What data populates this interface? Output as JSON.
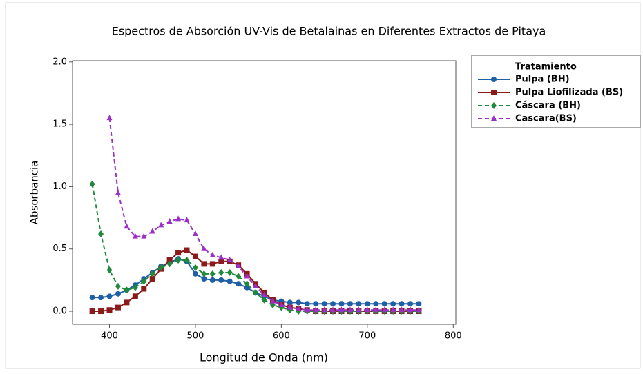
{
  "chart_data": {
    "type": "line",
    "title": "Espectros de Absorción UV-Vis de Betalainas en Diferentes Extractos de Pitaya",
    "xlabel": "Longitud de Onda (nm)",
    "ylabel": "Absorbancia",
    "legend_title": "Tratamiento",
    "legend": "outside-right",
    "x": [
      380,
      390,
      400,
      410,
      420,
      430,
      440,
      450,
      460,
      470,
      480,
      490,
      500,
      510,
      520,
      530,
      540,
      550,
      560,
      570,
      580,
      590,
      600,
      610,
      620,
      630,
      640,
      650,
      660,
      670,
      680,
      690,
      700,
      710,
      720,
      730,
      740,
      750,
      760
    ],
    "xlim": [
      357,
      803
    ],
    "xticks": [
      400,
      500,
      600,
      700,
      800
    ],
    "ylim": [
      -0.105,
      2.01
    ],
    "yticks": [
      {
        "value": 0,
        "label": "0.0"
      },
      0.5,
      {
        "value": 1,
        "label": "1.0"
      },
      1.5,
      {
        "value": 2,
        "label": "2.0"
      }
    ],
    "series": [
      {
        "name": "Pulpa (BH)",
        "color": "#1f5fa6",
        "marker": "circle",
        "line_style": "solid",
        "values": [
          0.11,
          0.11,
          0.12,
          0.14,
          0.17,
          0.21,
          0.26,
          0.31,
          0.36,
          0.39,
          0.42,
          0.4,
          0.3,
          0.26,
          0.25,
          0.25,
          0.24,
          0.22,
          0.19,
          0.15,
          0.12,
          0.09,
          0.08,
          0.07,
          0.07,
          0.06,
          0.06,
          0.06,
          0.06,
          0.06,
          0.06,
          0.06,
          0.06,
          0.06,
          0.06,
          0.06,
          0.06,
          0.06,
          0.06
        ]
      },
      {
        "name": "Pulpa Liofilizada (BS)",
        "color": "#8b1a1a",
        "marker": "square",
        "line_style": "solid",
        "values": [
          0.0,
          0.0,
          0.01,
          0.03,
          0.07,
          0.12,
          0.18,
          0.26,
          0.34,
          0.41,
          0.47,
          0.49,
          0.44,
          0.38,
          0.38,
          0.4,
          0.4,
          0.37,
          0.3,
          0.22,
          0.15,
          0.09,
          0.05,
          0.03,
          0.02,
          0.01,
          0.0,
          0.0,
          0.0,
          0.0,
          0.0,
          0.0,
          0.0,
          0.0,
          0.0,
          0.0,
          0.0,
          0.0,
          0.0
        ]
      },
      {
        "name": "Cáscara (BH)",
        "color": "#1e8a3a",
        "marker": "diamond",
        "line_style": "dashed",
        "values": [
          1.02,
          0.62,
          0.33,
          0.2,
          0.17,
          0.19,
          0.24,
          0.3,
          0.35,
          0.38,
          0.41,
          0.41,
          0.35,
          0.3,
          0.3,
          0.31,
          0.31,
          0.28,
          0.22,
          0.15,
          0.09,
          0.05,
          0.03,
          0.01,
          0.0,
          0.0,
          0.0,
          0.0,
          0.0,
          0.0,
          0.0,
          0.0,
          0.0,
          0.0,
          0.0,
          0.0,
          0.0,
          0.0,
          0.0
        ]
      },
      {
        "name": "Cascara(BS)",
        "color": "#9b30c8",
        "marker": "triangle",
        "line_style": "dashed",
        "values": [
          null,
          null,
          1.55,
          0.95,
          0.68,
          0.6,
          0.6,
          0.64,
          0.69,
          0.72,
          0.74,
          0.73,
          0.62,
          0.5,
          0.45,
          0.43,
          0.41,
          0.36,
          0.28,
          0.2,
          0.13,
          0.08,
          0.05,
          0.03,
          0.02,
          0.01,
          0.01,
          0.01,
          0.01,
          0.01,
          0.01,
          0.01,
          0.01,
          0.01,
          0.01,
          0.01,
          0.01,
          0.01,
          0.01
        ]
      }
    ]
  }
}
